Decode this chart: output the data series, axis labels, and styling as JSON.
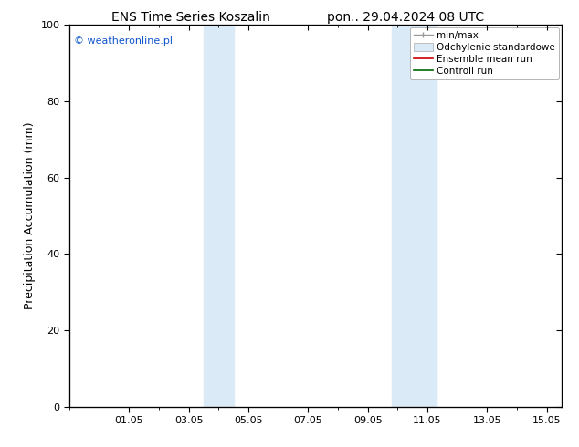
{
  "title_left": "ENS Time Series Koszalin",
  "title_right": "pon.. 29.04.2024 08 UTC",
  "ylabel": "Precipitation Accumulation (mm)",
  "watermark": "© weatheronline.pl",
  "watermark_color": "#1155cc",
  "ylim": [
    0,
    100
  ],
  "xtick_labels": [
    "01.05",
    "03.05",
    "05.05",
    "07.05",
    "09.05",
    "11.05",
    "13.05",
    "15.05"
  ],
  "xtick_positions": [
    2,
    4,
    6,
    8,
    10,
    12,
    14,
    16
  ],
  "ytick_positions": [
    0,
    20,
    40,
    60,
    80,
    100
  ],
  "shade_bands": [
    {
      "x_start": 4.5,
      "x_end": 5.5,
      "color": "#daeaf7"
    },
    {
      "x_start": 10.8,
      "x_end": 12.3,
      "color": "#daeaf7"
    }
  ],
  "legend_items": [
    {
      "label": "min/max",
      "color": "#999999",
      "lw": 1.2,
      "style": "minmax"
    },
    {
      "label": "Odchylenie standardowe",
      "color": "#daeaf7",
      "lw": 6,
      "style": "band"
    },
    {
      "label": "Ensemble mean run",
      "color": "#cc0000",
      "lw": 1.5,
      "style": "line"
    },
    {
      "label": "Controll run",
      "color": "#006600",
      "lw": 1.5,
      "style": "line"
    }
  ],
  "background_color": "#ffffff",
  "plot_bg_color": "#ffffff",
  "tick_color": "#000000",
  "font_size_title": 10,
  "font_size_axis": 9,
  "font_size_tick": 8,
  "font_size_legend": 7.5,
  "font_size_watermark": 8,
  "xlim": [
    0,
    16.5
  ]
}
